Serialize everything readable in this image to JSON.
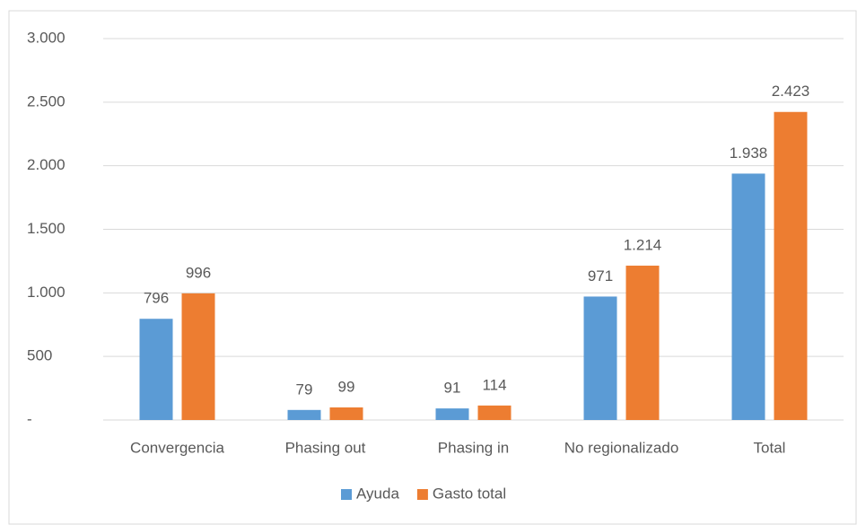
{
  "chart_data": {
    "type": "bar",
    "categories": [
      "Convergencia",
      "Phasing out",
      "Phasing in",
      "No regionalizado",
      "Total"
    ],
    "series": [
      {
        "name": "Ayuda",
        "color": "#5b9bd5",
        "values": [
          796,
          79,
          91,
          971,
          1938
        ],
        "value_labels": [
          "796",
          "79",
          "91",
          "971",
          "1.938"
        ]
      },
      {
        "name": "Gasto total",
        "color": "#ed7d31",
        "values": [
          996,
          99,
          114,
          1214,
          2423
        ],
        "value_labels": [
          "996",
          "99",
          "114",
          "1.214",
          "2.423"
        ]
      }
    ],
    "ylim": [
      0,
      3000
    ],
    "yticks": [
      {
        "value": 0,
        "label": "-"
      },
      500,
      {
        "value": 1000,
        "label": "1.000"
      },
      {
        "value": 1500,
        "label": "1.500"
      },
      {
        "value": 2000,
        "label": "2.000"
      },
      {
        "value": 2500,
        "label": "2.500"
      },
      {
        "value": 3000,
        "label": "3.000"
      }
    ],
    "grid": true,
    "legend": "bottom"
  }
}
